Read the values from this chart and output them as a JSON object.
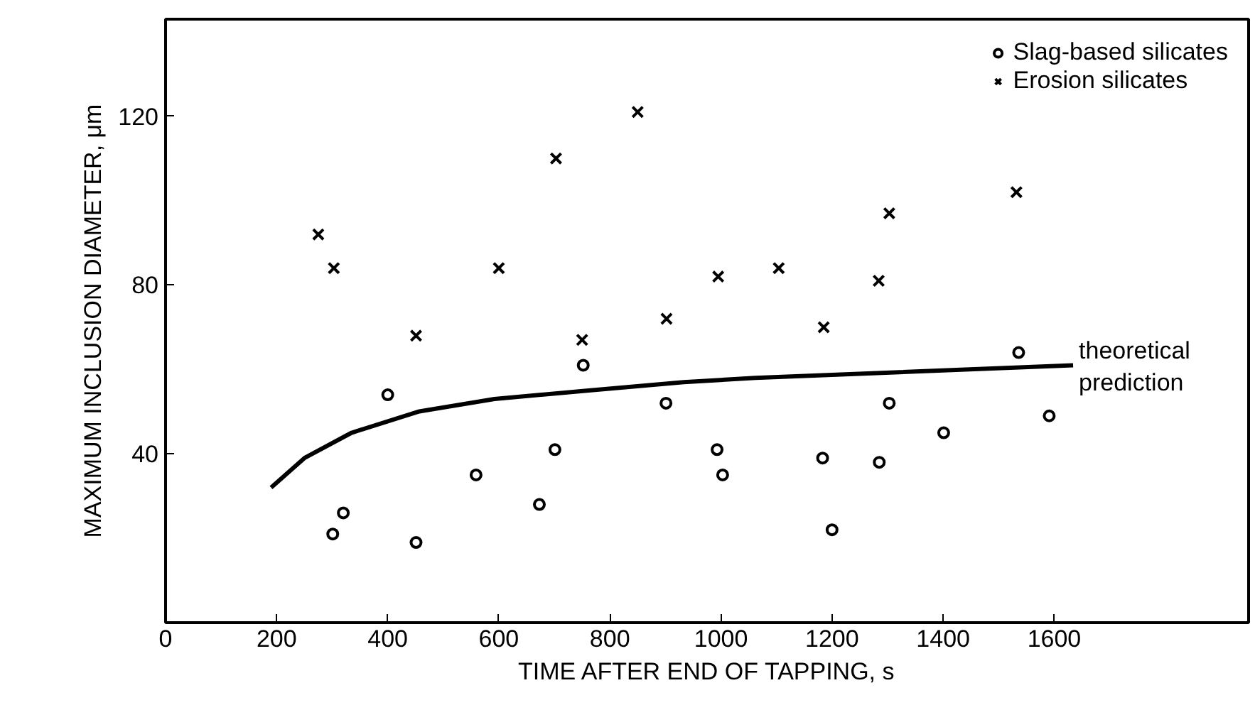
{
  "chart_data": {
    "type": "scatter",
    "xlabel": "TIME AFTER END OF TAPPING, s",
    "ylabel": "MAXIMUM INCLUSION DIAMETER, μm",
    "xlim": [
      0,
      1950
    ],
    "ylim": [
      0,
      143
    ],
    "xticks": [
      0,
      200,
      400,
      600,
      800,
      1000,
      1200,
      1400,
      1600
    ],
    "yticks": [
      40,
      80,
      120
    ],
    "grid": false,
    "legend": "top right",
    "series": [
      {
        "name": "Slag-based silicates",
        "marker": "circle",
        "color": "#000000",
        "x": [
          301,
          320,
          400,
          451,
          559,
          673,
          701,
          752,
          901,
          993,
          1003,
          1183,
          1200,
          1285,
          1303,
          1401,
          1536,
          1591
        ],
        "values": [
          21,
          26,
          54,
          19,
          35,
          28,
          41,
          61,
          52,
          41,
          35,
          39,
          22,
          38,
          52,
          45,
          64,
          49
        ]
      },
      {
        "name": "Erosion silicates",
        "marker": "cross",
        "color": "#000000",
        "x": [
          275,
          303,
          451,
          600,
          703,
          750,
          850,
          902,
          995,
          1104,
          1185,
          1284,
          1303,
          1532
        ],
        "values": [
          92,
          84,
          68,
          84,
          110,
          67,
          121,
          72,
          82,
          84,
          70,
          81,
          97,
          102
        ]
      },
      {
        "name": "theoretical prediction",
        "type": "line",
        "color": "#000000",
        "x": [
          190,
          250,
          335,
          455,
          592,
          762,
          933,
          1062,
          1634
        ],
        "values": [
          32,
          39,
          45,
          50,
          53,
          55,
          57,
          58,
          61
        ]
      }
    ]
  }
}
